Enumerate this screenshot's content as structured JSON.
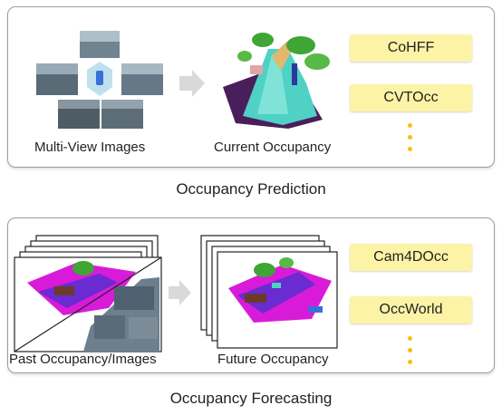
{
  "prediction": {
    "caption": "Occupancy Prediction",
    "input_label": "Multi-View Images",
    "output_label": "Current Occupancy",
    "methods": [
      "CoHFF",
      "CVTOcc"
    ]
  },
  "forecasting": {
    "caption": "Occupancy Forecasting",
    "input_label": "Past Occupancy/Images",
    "output_label": "Future Occupancy",
    "methods": [
      "Cam4DOcc",
      "OccWorld"
    ]
  },
  "colors": {
    "method_box": "#fdf3a6",
    "ellipsis": "#f4c20d",
    "arrow": "#d9d9d9",
    "drivable": "#4fd1c5",
    "sidewalk": "#d81bd8",
    "vegetation": "#3fa535",
    "terrain": "#4a1e5a"
  }
}
